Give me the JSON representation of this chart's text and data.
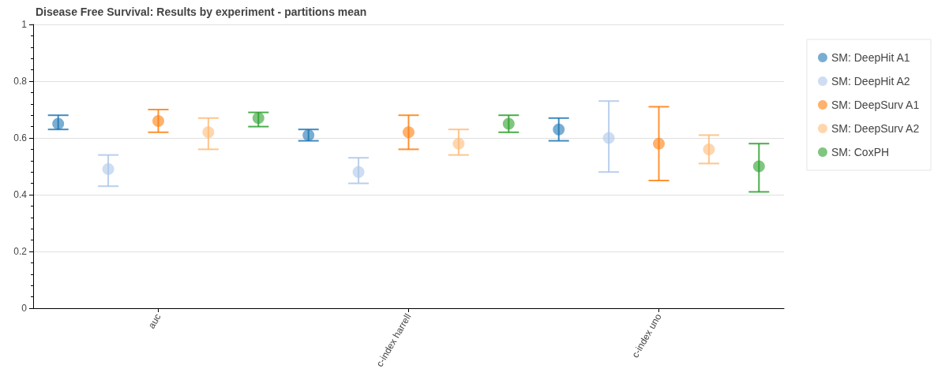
{
  "chart_data": {
    "type": "scatter",
    "title": "Disease Free Survival: Results by experiment - partitions mean",
    "categories": [
      "auc",
      "c-index harrell",
      "c-index uno"
    ],
    "series": [
      {
        "name": "SM: DeepHit A1",
        "color": "#1f77b4",
        "values": [
          0.65,
          0.61,
          0.63
        ],
        "errors": [
          [
            0.63,
            0.68
          ],
          [
            0.59,
            0.63
          ],
          [
            0.59,
            0.67
          ]
        ]
      },
      {
        "name": "SM: DeepHit A2",
        "color": "#aec7e8",
        "values": [
          0.49,
          0.48,
          0.6
        ],
        "errors": [
          [
            0.43,
            0.54
          ],
          [
            0.44,
            0.53
          ],
          [
            0.48,
            0.73
          ]
        ]
      },
      {
        "name": "SM: DeepSurv A1",
        "color": "#ff7f0e",
        "values": [
          0.66,
          0.62,
          0.58
        ],
        "errors": [
          [
            0.62,
            0.7
          ],
          [
            0.56,
            0.68
          ],
          [
            0.45,
            0.71
          ]
        ]
      },
      {
        "name": "SM: DeepSurv A2",
        "color": "#ffbb78",
        "values": [
          0.62,
          0.58,
          0.56
        ],
        "errors": [
          [
            0.56,
            0.67
          ],
          [
            0.54,
            0.63
          ],
          [
            0.51,
            0.61
          ]
        ]
      },
      {
        "name": "SM: CoxPH",
        "color": "#2ca02c",
        "values": [
          0.67,
          0.65,
          0.5
        ],
        "errors": [
          [
            0.64,
            0.69
          ],
          [
            0.62,
            0.68
          ],
          [
            0.41,
            0.58
          ]
        ]
      }
    ],
    "ylim": [
      0,
      1
    ],
    "yticks": [
      0,
      0.2,
      0.4,
      0.6,
      0.8,
      1
    ],
    "grid": "y",
    "legend": "right",
    "marker": "circle"
  }
}
